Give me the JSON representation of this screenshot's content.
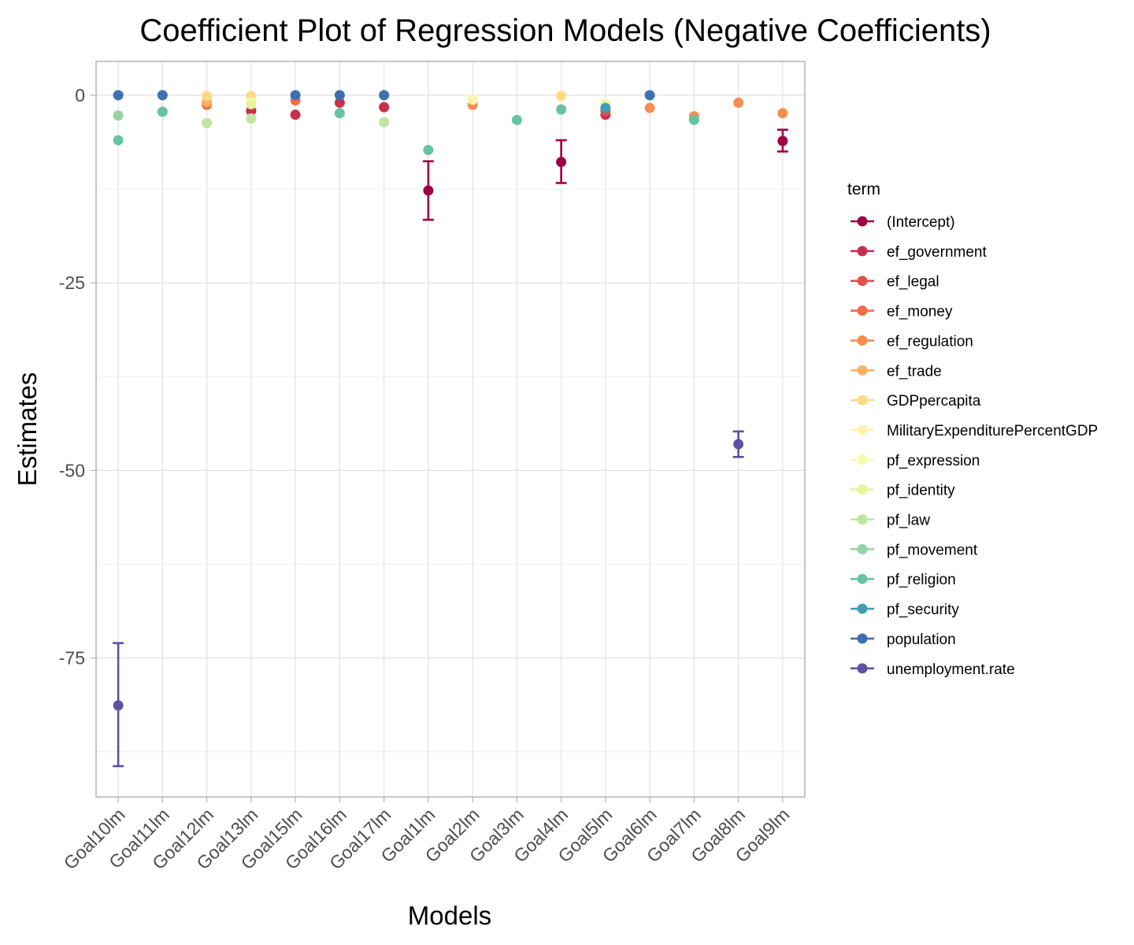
{
  "chart_data": {
    "type": "scatter",
    "title": "Coefficient Plot of Regression Models (Negative Coefficients)",
    "xlabel": "Models",
    "ylabel": "Estimates",
    "ylim": [
      -93.5,
      4.5
    ],
    "yticks": [
      0,
      -25,
      -50,
      -75
    ],
    "ytick_labels": [
      "0",
      "-25",
      "-50",
      "-75"
    ],
    "grid": true,
    "legend": {
      "title": "term",
      "position": "right"
    },
    "categories": [
      "Goal10lm",
      "Goal11lm",
      "Goal12lm",
      "Goal13lm",
      "Goal15lm",
      "Goal16lm",
      "Goal17lm",
      "Goal1lm",
      "Goal2lm",
      "Goal3lm",
      "Goal4lm",
      "Goal5lm",
      "Goal6lm",
      "Goal7lm",
      "Goal8lm",
      "Goal9lm"
    ],
    "series": [
      {
        "name": "(Intercept)",
        "color": "#9E0142",
        "points": [
          {
            "x": "Goal1lm",
            "y": -12.7,
            "lo": -16.6,
            "hi": -8.8
          },
          {
            "x": "Goal4lm",
            "y": -8.9,
            "lo": -11.7,
            "hi": -6.0
          },
          {
            "x": "Goal9lm",
            "y": -6.1,
            "lo": -7.5,
            "hi": -4.6
          }
        ]
      },
      {
        "name": "ef_government",
        "color": "#C7314D",
        "points": [
          {
            "x": "Goal13lm",
            "y": -2.1
          },
          {
            "x": "Goal15lm",
            "y": -2.6
          },
          {
            "x": "Goal16lm",
            "y": -1.0
          },
          {
            "x": "Goal17lm",
            "y": -1.6
          },
          {
            "x": "Goal5lm",
            "y": -2.6
          }
        ]
      },
      {
        "name": "ef_legal",
        "color": "#E1504A",
        "points": [
          {
            "x": "Goal12lm",
            "y": -1.1
          },
          {
            "x": "Goal5lm",
            "y": -2.1
          }
        ]
      },
      {
        "name": "ef_money",
        "color": "#F46D43",
        "points": [
          {
            "x": "Goal15lm",
            "y": -0.7
          },
          {
            "x": "Goal12lm",
            "y": -1.3
          }
        ]
      },
      {
        "name": "ef_regulation",
        "color": "#F88D52",
        "points": [
          {
            "x": "Goal2lm",
            "y": -1.3
          },
          {
            "x": "Goal6lm",
            "y": -1.7
          },
          {
            "x": "Goal7lm",
            "y": -2.8
          },
          {
            "x": "Goal8lm",
            "y": -1.0
          },
          {
            "x": "Goal9lm",
            "y": -2.4
          }
        ]
      },
      {
        "name": "ef_trade",
        "color": "#FDB163",
        "points": [
          {
            "x": "Goal12lm",
            "y": -0.9
          }
        ]
      },
      {
        "name": "GDPpercapita",
        "color": "#FEDA86",
        "points": [
          {
            "x": "Goal12lm",
            "y": -0.1
          },
          {
            "x": "Goal13lm",
            "y": -0.1
          },
          {
            "x": "Goal4lm",
            "y": -0.1
          }
        ]
      },
      {
        "name": "MilitaryExpenditurePercentGDP",
        "color": "#FEF3AD",
        "points": [
          {
            "x": "Goal13lm",
            "y": -0.9
          },
          {
            "x": "Goal2lm",
            "y": -0.6
          }
        ]
      },
      {
        "name": "pf_expression",
        "color": "#F5FBB1",
        "points": [
          {
            "x": "Goal5lm",
            "y": -1.1
          }
        ]
      },
      {
        "name": "pf_identity",
        "color": "#E6F598",
        "points": [
          {
            "x": "Goal13lm",
            "y": -1.2
          },
          {
            "x": "Goal5lm",
            "y": -1.3
          }
        ]
      },
      {
        "name": "pf_law",
        "color": "#C0E5A0",
        "points": [
          {
            "x": "Goal12lm",
            "y": -3.7
          },
          {
            "x": "Goal13lm",
            "y": -3.1
          },
          {
            "x": "Goal17lm",
            "y": -3.6
          }
        ]
      },
      {
        "name": "pf_movement",
        "color": "#94D5A4",
        "points": [
          {
            "x": "Goal10lm",
            "y": -2.7
          }
        ]
      },
      {
        "name": "pf_religion",
        "color": "#66C2A5",
        "points": [
          {
            "x": "Goal10lm",
            "y": -6.0
          },
          {
            "x": "Goal11lm",
            "y": -2.2
          },
          {
            "x": "Goal16lm",
            "y": -2.4
          },
          {
            "x": "Goal1lm",
            "y": -7.3
          },
          {
            "x": "Goal3lm",
            "y": -3.3
          },
          {
            "x": "Goal4lm",
            "y": -1.9
          },
          {
            "x": "Goal7lm",
            "y": -3.3
          }
        ]
      },
      {
        "name": "pf_security",
        "color": "#439BB5",
        "points": [
          {
            "x": "Goal5lm",
            "y": -1.7
          }
        ]
      },
      {
        "name": "population",
        "color": "#3E70B0",
        "points": [
          {
            "x": "Goal10lm",
            "y": 0
          },
          {
            "x": "Goal11lm",
            "y": 0
          },
          {
            "x": "Goal15lm",
            "y": 0
          },
          {
            "x": "Goal16lm",
            "y": 0
          },
          {
            "x": "Goal17lm",
            "y": 0
          },
          {
            "x": "Goal6lm",
            "y": 0
          }
        ]
      },
      {
        "name": "unemployment.rate",
        "color": "#5E4FA2",
        "points": [
          {
            "x": "Goal10lm",
            "y": -81.3,
            "lo": -89.4,
            "hi": -73.0
          },
          {
            "x": "Goal8lm",
            "y": -46.5,
            "lo": -48.2,
            "hi": -44.8
          }
        ]
      }
    ]
  }
}
